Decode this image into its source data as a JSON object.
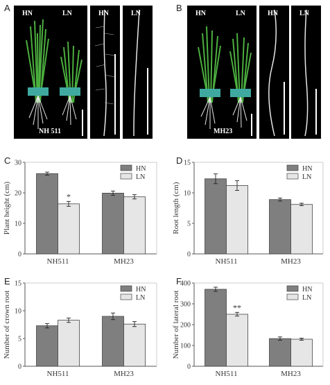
{
  "panels": {
    "A": {
      "label": "A",
      "photo_labels": {
        "hn": "HN",
        "ln": "LN",
        "variety": "NH 511",
        "root_hn": "HN",
        "root_ln": "LN"
      }
    },
    "B": {
      "label": "B",
      "photo_labels": {
        "hn": "HN",
        "ln": "LN",
        "variety": "MH23",
        "root_hn": "HN",
        "root_ln": "LN"
      }
    }
  },
  "colors": {
    "hn": "#7f7f7f",
    "ln": "#e6e6e6",
    "axis": "#555555",
    "photo_bg": "#000000",
    "leaf": "#4caf3f",
    "root": "#e8e8e8"
  },
  "chart_data": [
    {
      "panel": "C",
      "type": "bar",
      "categories": [
        "NH511",
        "MH23"
      ],
      "series": [
        {
          "name": "HN",
          "values": [
            26.3,
            19.9
          ],
          "errors": [
            0.5,
            0.7
          ]
        },
        {
          "name": "LN",
          "values": [
            16.4,
            18.7
          ],
          "errors": [
            0.8,
            0.7
          ]
        }
      ],
      "ylabel": "Plant height (cm)",
      "ylim": [
        0,
        30
      ],
      "yticks": [
        0,
        10,
        20,
        30
      ],
      "annotations": [
        {
          "category": "NH511",
          "series": "LN",
          "text": "*"
        }
      ],
      "legend": "top-right"
    },
    {
      "panel": "D",
      "type": "bar",
      "categories": [
        "NH511",
        "MH23"
      ],
      "series": [
        {
          "name": "HN",
          "values": [
            12.3,
            8.9
          ],
          "errors": [
            0.8,
            0.25
          ]
        },
        {
          "name": "LN",
          "values": [
            11.2,
            8.1
          ],
          "errors": [
            0.8,
            0.2
          ]
        }
      ],
      "ylabel": "Root length (cm)",
      "ylim": [
        0,
        15
      ],
      "yticks": [
        0,
        5,
        10,
        15
      ],
      "annotations": [],
      "legend": "top-right"
    },
    {
      "panel": "E",
      "type": "bar",
      "categories": [
        "NH511",
        "MH23"
      ],
      "series": [
        {
          "name": "HN",
          "values": [
            7.3,
            9.0
          ],
          "errors": [
            0.4,
            0.6
          ]
        },
        {
          "name": "LN",
          "values": [
            8.3,
            7.6
          ],
          "errors": [
            0.4,
            0.45
          ]
        }
      ],
      "ylabel": "Number of crown root",
      "ylim": [
        0,
        15
      ],
      "yticks": [
        0,
        5,
        10,
        15
      ],
      "annotations": [],
      "legend": "top-right"
    },
    {
      "panel": "F",
      "type": "bar",
      "categories": [
        "NH511",
        "MH23"
      ],
      "series": [
        {
          "name": "HN",
          "values": [
            370,
            133
          ],
          "errors": [
            10,
            8
          ]
        },
        {
          "name": "LN",
          "values": [
            250,
            130
          ],
          "errors": [
            9,
            5
          ]
        }
      ],
      "ylabel": "Number of lateral root",
      "ylim": [
        0,
        400
      ],
      "yticks": [
        0,
        100,
        200,
        300,
        400
      ],
      "annotations": [
        {
          "category": "NH511",
          "series": "LN",
          "text": "**"
        }
      ],
      "legend": "top-right"
    }
  ]
}
